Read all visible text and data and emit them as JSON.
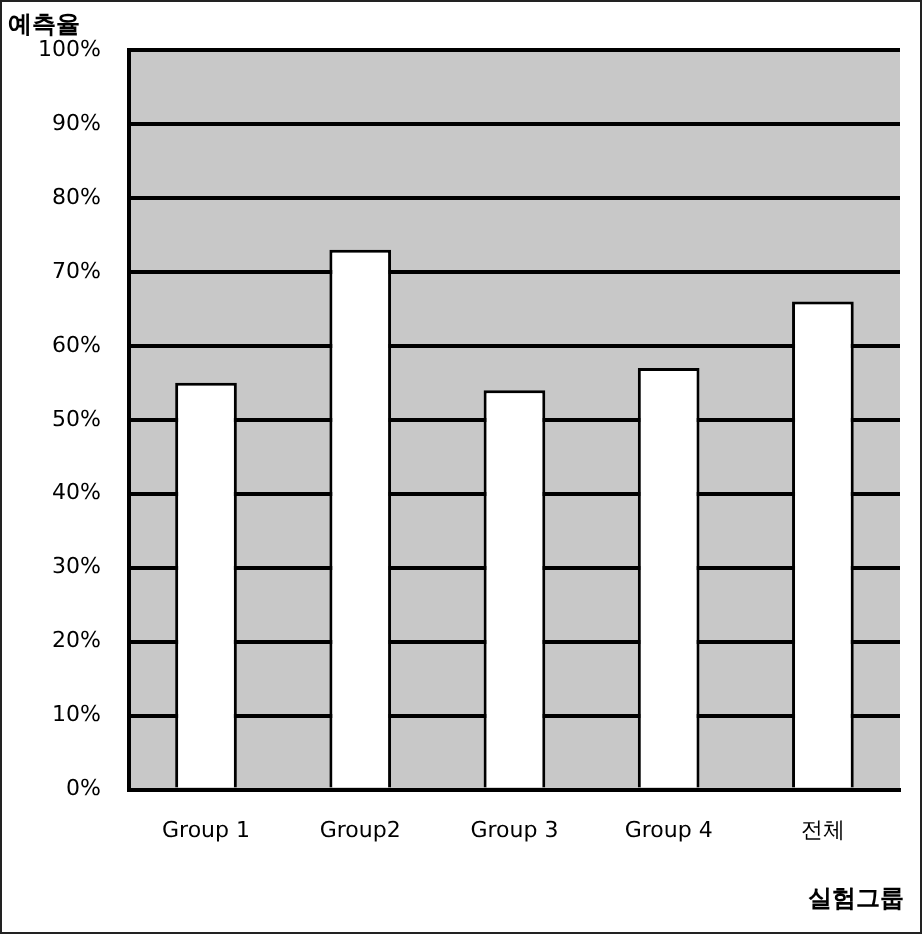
{
  "chart_data": {
    "type": "bar",
    "ylabel": "예측율",
    "xlabel": "실험그룹",
    "categories": [
      "Group 1",
      "Group2",
      "Group 3",
      "Group 4",
      "전체"
    ],
    "values": [
      55,
      73,
      54,
      57,
      66
    ],
    "color": "#ffffff",
    "ylim": [
      0,
      100
    ],
    "yticks": [
      {
        "value": 0,
        "label": "0%"
      },
      {
        "value": 10,
        "label": "10%"
      },
      {
        "value": 20,
        "label": "20%"
      },
      {
        "value": 30,
        "label": "30%"
      },
      {
        "value": 40,
        "label": "40%"
      },
      {
        "value": 50,
        "label": "50%"
      },
      {
        "value": 60,
        "label": "60%"
      },
      {
        "value": 70,
        "label": "70%"
      },
      {
        "value": 80,
        "label": "80%"
      },
      {
        "value": 90,
        "label": "90%"
      },
      {
        "value": 100,
        "label": "100%"
      }
    ],
    "grid": "y",
    "legend": false
  }
}
